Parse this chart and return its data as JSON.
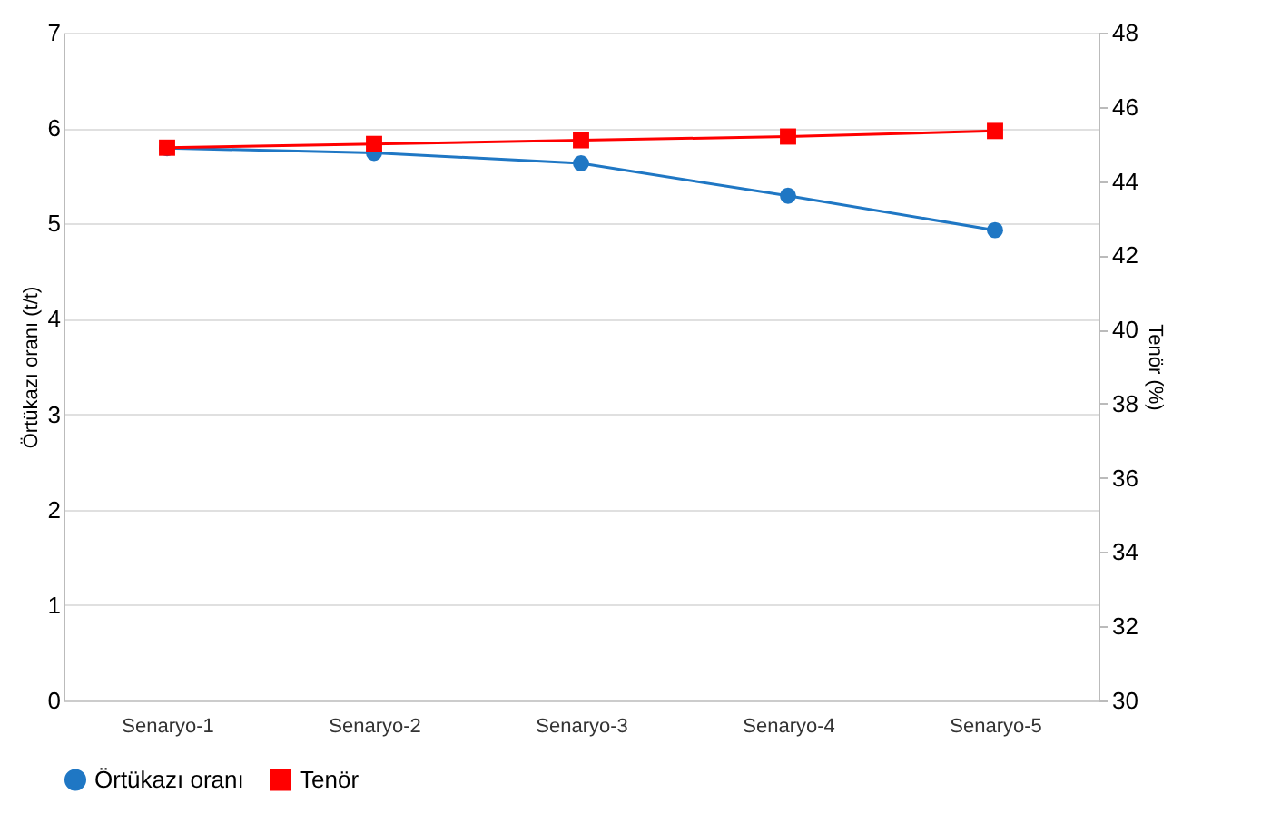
{
  "chart_data": {
    "type": "line",
    "categories": [
      "Senaryo-1",
      "Senaryo-2",
      "Senaryo-3",
      "Senaryo-4",
      "Senaryo-5"
    ],
    "ylabel": "Örtükazı oranı (t/t)",
    "y2label": "Tenör (%)",
    "ylim": [
      0,
      7
    ],
    "yticks": [
      0,
      1,
      2,
      3,
      4,
      5,
      6,
      7
    ],
    "y2lim": [
      30,
      48
    ],
    "y2ticks": [
      30,
      32,
      34,
      36,
      38,
      40,
      42,
      44,
      46,
      48
    ],
    "series": [
      {
        "name": "Örtükazı oranı",
        "color": "#1f77c4",
        "marker": "circle",
        "values": [
          5.79,
          5.74,
          5.63,
          5.29,
          4.93
        ]
      },
      {
        "name": "Tenör",
        "color": "#ff0000",
        "marker": "square",
        "axis": "y2",
        "values": [
          44.9,
          45.0,
          45.1,
          45.2,
          45.35
        ]
      }
    ],
    "grid": "y",
    "legend": "bottom"
  }
}
